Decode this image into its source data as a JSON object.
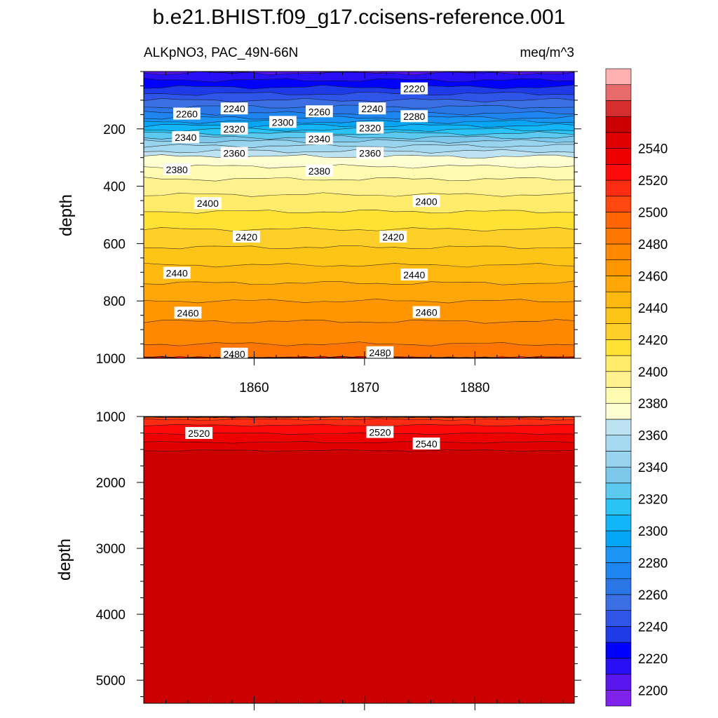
{
  "title": "b.e21.BHIST.f09_g17.ccisens-reference.001",
  "chart_data": {
    "type": "contour",
    "title": "b.e21.BHIST.f09_g17.ccisens-reference.001",
    "variable": "ALKpNO3, PAC_49N-66N",
    "units": "meq/m^3",
    "xlabel": "",
    "ylabel": "depth",
    "x_range": [
      1850,
      1889
    ],
    "x_ticks": [
      1860,
      1870,
      1880
    ],
    "x_tick_labels": [
      "1860",
      "1870",
      "1880"
    ],
    "levels": [
      2200,
      2210,
      2220,
      2230,
      2240,
      2250,
      2260,
      2270,
      2280,
      2290,
      2300,
      2310,
      2320,
      2330,
      2340,
      2350,
      2360,
      2370,
      2380,
      2390,
      2400,
      2410,
      2420,
      2430,
      2440,
      2450,
      2460,
      2470,
      2480,
      2490,
      2500,
      2510,
      2520,
      2530,
      2540,
      2550
    ],
    "colors": [
      "#7e22ec",
      "#5b16f0",
      "#2810f6",
      "#0000ff",
      "#1f3be8",
      "#2e55e8",
      "#3b6ee2",
      "#2a76e6",
      "#1d84f0",
      "#1b95f5",
      "#05a5f5",
      "#12b5f7",
      "#2ac3f5",
      "#5ccaf0",
      "#7ec8ec",
      "#98d4ee",
      "#a6d9ef",
      "#bde3f2",
      "#fffed2",
      "#fffbb0",
      "#fff28e",
      "#ffec6a",
      "#ffe234",
      "#fdcf28",
      "#ffc516",
      "#ffb80d",
      "#ffa706",
      "#ff9500",
      "#ff8800",
      "#ff7700",
      "#ff6505",
      "#ff480f",
      "#ff2c14",
      "#ff0a0a",
      "#ee0000",
      "#e00000",
      "#cc0000",
      "#d62e2e",
      "#e86b6b",
      "#ffb1b1"
    ],
    "colorbar_labels": [
      "2200",
      "2220",
      "2240",
      "2260",
      "2280",
      "2300",
      "2320",
      "2340",
      "2360",
      "2380",
      "2400",
      "2420",
      "2440",
      "2460",
      "2480",
      "2500",
      "2520",
      "2540"
    ],
    "panels": [
      {
        "name": "upper",
        "depth_range": [
          0,
          1000
        ],
        "y_ticks": [
          200,
          400,
          600,
          800,
          1000
        ],
        "y_tick_labels": [
          "200",
          "400",
          "600",
          "800",
          "1000"
        ],
        "profile": [
          {
            "depth": 0,
            "value": 2208
          },
          {
            "depth": 50,
            "value": 2228
          },
          {
            "depth": 100,
            "value": 2250
          },
          {
            "depth": 150,
            "value": 2272
          },
          {
            "depth": 200,
            "value": 2308
          },
          {
            "depth": 250,
            "value": 2345
          },
          {
            "depth": 300,
            "value": 2372
          },
          {
            "depth": 350,
            "value": 2385
          },
          {
            "depth": 400,
            "value": 2395
          },
          {
            "depth": 500,
            "value": 2412
          },
          {
            "depth": 600,
            "value": 2428
          },
          {
            "depth": 700,
            "value": 2444
          },
          {
            "depth": 800,
            "value": 2460
          },
          {
            "depth": 900,
            "value": 2474
          },
          {
            "depth": 1000,
            "value": 2486
          }
        ],
        "contour_labels": [
          {
            "text": "2220",
            "year": 1874.5,
            "depth": 60
          },
          {
            "text": "2240",
            "year": 1858.2,
            "depth": 130
          },
          {
            "text": "2240",
            "year": 1870.7,
            "depth": 130
          },
          {
            "text": "2260",
            "year": 1853.9,
            "depth": 148
          },
          {
            "text": "2260",
            "year": 1865.9,
            "depth": 140
          },
          {
            "text": "2280",
            "year": 1874.5,
            "depth": 157
          },
          {
            "text": "2300",
            "year": 1862.6,
            "depth": 177
          },
          {
            "text": "2320",
            "year": 1858.2,
            "depth": 200
          },
          {
            "text": "2320",
            "year": 1870.5,
            "depth": 197
          },
          {
            "text": "2340",
            "year": 1853.8,
            "depth": 230
          },
          {
            "text": "2340",
            "year": 1865.9,
            "depth": 235
          },
          {
            "text": "2360",
            "year": 1858.2,
            "depth": 285
          },
          {
            "text": "2360",
            "year": 1870.5,
            "depth": 285
          },
          {
            "text": "2380",
            "year": 1853.0,
            "depth": 342
          },
          {
            "text": "2380",
            "year": 1865.9,
            "depth": 347
          },
          {
            "text": "2400",
            "year": 1855.8,
            "depth": 460
          },
          {
            "text": "2400",
            "year": 1875.6,
            "depth": 453
          },
          {
            "text": "2420",
            "year": 1859.3,
            "depth": 577
          },
          {
            "text": "2420",
            "year": 1872.6,
            "depth": 577
          },
          {
            "text": "2440",
            "year": 1853.0,
            "depth": 703
          },
          {
            "text": "2440",
            "year": 1874.5,
            "depth": 709
          },
          {
            "text": "2460",
            "year": 1854.0,
            "depth": 842
          },
          {
            "text": "2460",
            "year": 1875.6,
            "depth": 840
          },
          {
            "text": "2480",
            "year": 1858.2,
            "depth": 985
          },
          {
            "text": "2480",
            "year": 1871.4,
            "depth": 980
          }
        ]
      },
      {
        "name": "lower",
        "depth_range": [
          1000,
          5350
        ],
        "y_ticks": [
          1000,
          2000,
          3000,
          4000,
          5000
        ],
        "y_tick_labels": [
          "1000",
          "2000",
          "3000",
          "4000",
          "5000"
        ],
        "profile": [
          {
            "depth": 1000,
            "value": 2505
          },
          {
            "depth": 1150,
            "value": 2522
          },
          {
            "depth": 1300,
            "value": 2533
          },
          {
            "depth": 1430,
            "value": 2543
          },
          {
            "depth": 1540,
            "value": 2552
          },
          {
            "depth": 5350,
            "value": 2560
          }
        ],
        "contour_labels": [
          {
            "text": "2520",
            "year": 1855.0,
            "depth": 1255
          },
          {
            "text": "2520",
            "year": 1871.4,
            "depth": 1240
          },
          {
            "text": "2540",
            "year": 1875.6,
            "depth": 1415
          }
        ]
      }
    ]
  }
}
